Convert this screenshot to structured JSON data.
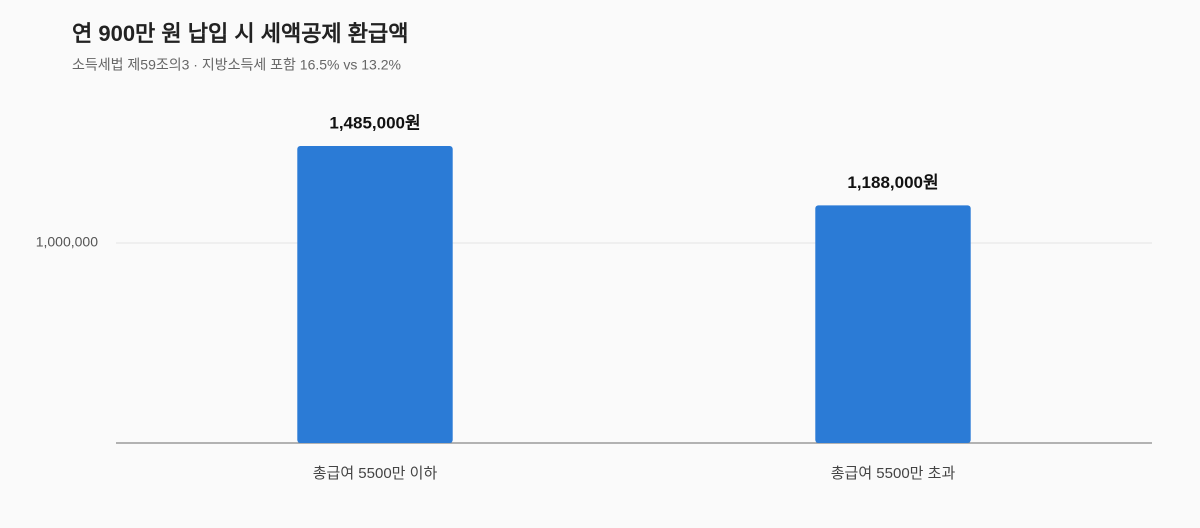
{
  "chart_data": {
    "type": "bar",
    "title": "연 900만 원 납입 시 세액공제 환급액",
    "subtitle": "소득세법 제59조의3 · 지방소득세 포함 16.5% vs 13.2%",
    "categories": [
      "총급여 5500만 이하",
      "총급여 5500만 초과"
    ],
    "values": [
      1485000,
      1188000
    ],
    "value_labels": [
      "1,485,000원",
      "1,188,000원"
    ],
    "color": "#2b7bd6",
    "ylim": [
      0,
      1700000
    ],
    "yticks": [
      {
        "value": 1000000,
        "label": "1,000,000"
      }
    ],
    "grid": true
  }
}
